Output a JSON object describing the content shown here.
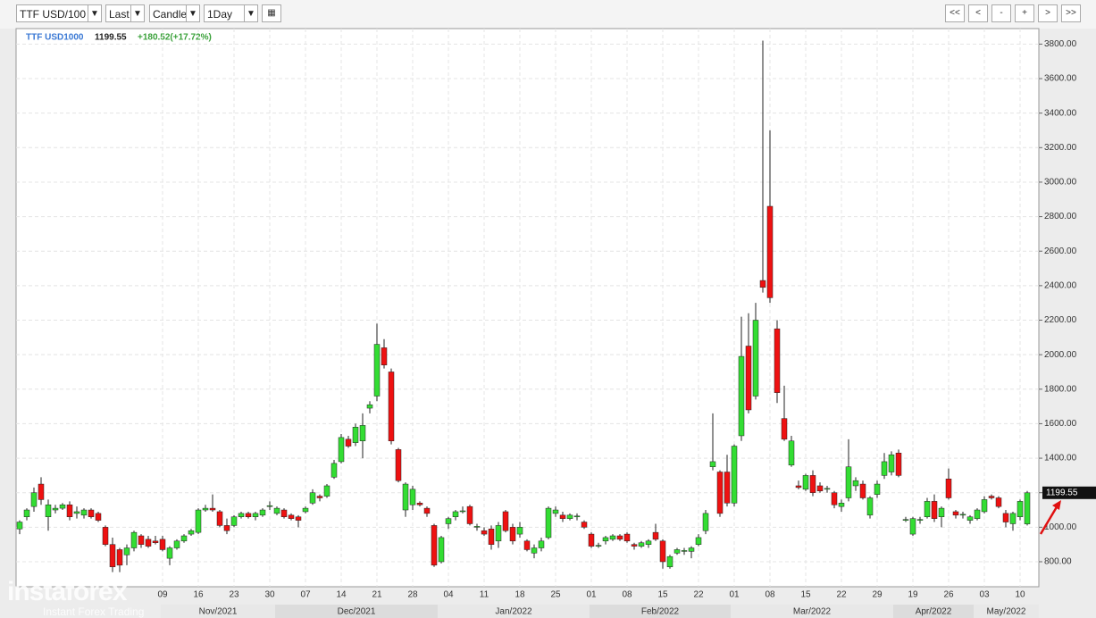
{
  "toolbar": {
    "symbol": "TTF USD/100",
    "price_field": "Last",
    "style": "Candle",
    "interval": "1Day",
    "nav": [
      "<<",
      "<",
      "-",
      "+",
      ">",
      ">>"
    ]
  },
  "watermark": {
    "brand": "instaforex",
    "tagline": "Instant Forex Trading"
  },
  "chart_data": {
    "type": "candlestick",
    "legend": {
      "name": "TTF USD1000",
      "last": 1199.55,
      "change": "+180.52(+17.72%)"
    },
    "up_color": "#33dd33",
    "down_color": "#ee1111",
    "grid": true,
    "ylim": [
      655,
      3890
    ],
    "yticks": [
      {
        "value": 800,
        "label": "800.00"
      },
      {
        "value": 1000,
        "label": "1000.00"
      },
      {
        "value": 1200,
        "label": "1200.00"
      },
      {
        "value": 1400,
        "label": "1400.00"
      },
      {
        "value": 1600,
        "label": "1600.00"
      },
      {
        "value": 1800,
        "label": "1800.00"
      },
      {
        "value": 2000,
        "label": "2000.00"
      },
      {
        "value": 2200,
        "label": "2200.00"
      },
      {
        "value": 2400,
        "label": "2400.00"
      },
      {
        "value": 2600,
        "label": "2600.00"
      },
      {
        "value": 2800,
        "label": "2800.00"
      },
      {
        "value": 3000,
        "label": "3000.00"
      },
      {
        "value": 3200,
        "label": "3200.00"
      },
      {
        "value": 3400,
        "label": "3400.00"
      },
      {
        "value": 3600,
        "label": "3600.00"
      },
      {
        "value": 3800,
        "label": "3800.00"
      }
    ],
    "months": [
      "Nov/2021",
      "Dec/2021",
      "Jan/2022",
      "Feb/2022",
      "Mar/2022",
      "Apr/2022",
      "May/2022"
    ],
    "categories": [
      null,
      null,
      null,
      null,
      null,
      null,
      null,
      null,
      null,
      null,
      null,
      null,
      null,
      null,
      null,
      null,
      null,
      null,
      null,
      null,
      "09",
      null,
      null,
      null,
      null,
      "16",
      null,
      null,
      null,
      null,
      "23",
      null,
      null,
      null,
      null,
      "30",
      null,
      null,
      null,
      null,
      "07",
      null,
      null,
      null,
      null,
      "14",
      null,
      null,
      null,
      null,
      "21",
      null,
      null,
      null,
      null,
      "28",
      null,
      null,
      null,
      null,
      "04",
      null,
      null,
      null,
      null,
      "11",
      null,
      null,
      null,
      null,
      "18",
      null,
      null,
      null,
      null,
      "25",
      null,
      null,
      null,
      null,
      "01",
      null,
      null,
      null,
      null,
      "08",
      null,
      null,
      null,
      null,
      "15",
      null,
      null,
      null,
      null,
      "22",
      null,
      null,
      null,
      null,
      "01",
      null,
      null,
      null,
      null,
      "08",
      null,
      null,
      null,
      null,
      "15",
      null,
      null,
      null,
      null,
      "22",
      null,
      null,
      null,
      null,
      "29",
      null,
      null,
      null,
      null,
      "19",
      null,
      null,
      null,
      null,
      "26",
      null,
      null,
      null,
      null,
      "03",
      null,
      null,
      null,
      null,
      "10",
      null
    ],
    "series": [
      {
        "name": "TTF USD1000",
        "open": [
          990,
          1060,
          1120,
          1250,
          1060,
          1100,
          1110,
          1130,
          1080,
          1070,
          1100,
          1080,
          1000,
          900,
          870,
          840,
          880,
          950,
          930,
          920,
          930,
          820,
          880,
          920,
          960,
          970,
          1100,
          1110,
          1090,
          1010,
          1010,
          1060,
          1080,
          1060,
          1070,
          1120,
          1080,
          1100,
          1070,
          1060,
          1090,
          1140,
          1180,
          1180,
          1290,
          1380,
          1510,
          1490,
          1500,
          1690,
          1760,
          2040,
          1900,
          1450,
          1100,
          1130,
          1140,
          1110,
          1010,
          800,
          1020,
          1060,
          1090,
          1120,
          1000,
          980,
          990,
          920,
          1090,
          1000,
          960,
          920,
          850,
          880,
          940,
          1080,
          1070,
          1050,
          1060,
          1030,
          960,
          890,
          920,
          930,
          950,
          960,
          900,
          890,
          900,
          970,
          920,
          770,
          850,
          860,
          860,
          900,
          980,
          1350,
          1320,
          1320,
          1140,
          1530,
          2050,
          1760,
          2430,
          2860,
          2150,
          1630,
          1360,
          1240,
          1220,
          1300,
          1240,
          1220,
          1200,
          1120,
          1170,
          1240,
          1250,
          1070,
          1190,
          1300,
          1320,
          1430,
          1040,
          960,
          1040,
          1060,
          1150,
          1060,
          1280,
          1090,
          1070,
          1040,
          1050,
          1090,
          1180,
          1170,
          1080,
          1020,
          1060,
          1019.03
        ],
        "high": [
          1040,
          1110,
          1230,
          1290,
          1160,
          1130,
          1140,
          1150,
          1120,
          1110,
          1110,
          1090,
          1010,
          940,
          880,
          900,
          980,
          960,
          950,
          950,
          950,
          890,
          930,
          960,
          990,
          1110,
          1130,
          1190,
          1100,
          1050,
          1070,
          1090,
          1090,
          1090,
          1110,
          1150,
          1120,
          1110,
          1080,
          1070,
          1120,
          1220,
          1190,
          1250,
          1390,
          1540,
          1530,
          1600,
          1660,
          1730,
          2180,
          2090,
          1920,
          1460,
          1260,
          1240,
          1150,
          1120,
          1020,
          950,
          1060,
          1100,
          1120,
          1130,
          1020,
          1000,
          1010,
          1030,
          1100,
          1020,
          1030,
          930,
          900,
          940,
          1120,
          1120,
          1090,
          1080,
          1080,
          1040,
          970,
          910,
          950,
          960,
          960,
          970,
          910,
          920,
          930,
          1020,
          930,
          840,
          880,
          880,
          890,
          960,
          1100,
          1660,
          1330,
          1420,
          1480,
          2220,
          2240,
          2300,
          3820,
          3300,
          2200,
          1820,
          1530,
          1270,
          1310,
          1330,
          1260,
          1240,
          1210,
          1160,
          1510,
          1290,
          1270,
          1180,
          1270,
          1430,
          1440,
          1450,
          1060,
          1060,
          1060,
          1170,
          1190,
          1120,
          1340,
          1100,
          1090,
          1070,
          1110,
          1180,
          1190,
          1180,
          1100,
          1090,
          1160,
          1210
        ],
        "low": [
          960,
          1040,
          1090,
          1130,
          980,
          1080,
          1100,
          1040,
          1050,
          1050,
          1050,
          1030,
          890,
          740,
          740,
          780,
          860,
          880,
          880,
          900,
          860,
          780,
          870,
          910,
          950,
          960,
          1090,
          1090,
          1000,
          960,
          1000,
          1050,
          1050,
          1040,
          1060,
          1100,
          1070,
          1050,
          1040,
          1000,
          1080,
          1130,
          1150,
          1170,
          1280,
          1370,
          1460,
          1470,
          1400,
          1660,
          1730,
          1920,
          1480,
          1260,
          1060,
          1100,
          1120,
          1060,
          770,
          790,
          990,
          1040,
          1080,
          1010,
          980,
          950,
          870,
          880,
          970,
          900,
          940,
          860,
          820,
          860,
          930,
          1060,
          1030,
          1040,
          1040,
          990,
          880,
          880,
          900,
          920,
          920,
          910,
          870,
          880,
          880,
          920,
          760,
          760,
          840,
          840,
          820,
          890,
          960,
          1330,
          1060,
          1120,
          1120,
          1500,
          1660,
          1740,
          2360,
          2300,
          1720,
          1500,
          1350,
          1220,
          1210,
          1180,
          1200,
          1200,
          1110,
          1090,
          1150,
          1210,
          1160,
          1050,
          1170,
          1280,
          1300,
          1290,
          1030,
          950,
          1020,
          1050,
          1030,
          1000,
          1160,
          1050,
          1050,
          1020,
          1040,
          1080,
          1160,
          1110,
          1000,
          980,
          1040,
          1010
        ],
        "close": [
          1030,
          1100,
          1200,
          1160,
          1130,
          1110,
          1130,
          1060,
          1090,
          1100,
          1060,
          1040,
          900,
          770,
          780,
          880,
          970,
          900,
          890,
          910,
          870,
          880,
          920,
          950,
          980,
          1100,
          1110,
          1100,
          1010,
          980,
          1060,
          1080,
          1060,
          1080,
          1100,
          1125,
          1110,
          1060,
          1050,
          1040,
          1110,
          1200,
          1170,
          1240,
          1370,
          1520,
          1470,
          1580,
          1590,
          1710,
          2060,
          1940,
          1500,
          1270,
          1250,
          1220,
          1130,
          1080,
          780,
          940,
          1050,
          1090,
          1095,
          1020,
          1005,
          960,
          900,
          1010,
          980,
          920,
          1000,
          870,
          880,
          920,
          1110,
          1100,
          1050,
          1070,
          1065,
          1000,
          890,
          895,
          940,
          950,
          930,
          920,
          890,
          910,
          920,
          930,
          800,
          830,
          870,
          865,
          880,
          940,
          1080,
          1380,
          1080,
          1140,
          1470,
          1990,
          1680,
          2200,
          2390,
          2330,
          1780,
          1510,
          1500,
          1230,
          1300,
          1200,
          1210,
          1225,
          1130,
          1140,
          1350,
          1270,
          1170,
          1170,
          1250,
          1380,
          1420,
          1300,
          1045,
          1050,
          1045,
          1150,
          1050,
          1110,
          1170,
          1070,
          1075,
          1060,
          1100,
          1160,
          1170,
          1120,
          1030,
          1080,
          1150,
          1199.55
        ]
      }
    ]
  }
}
